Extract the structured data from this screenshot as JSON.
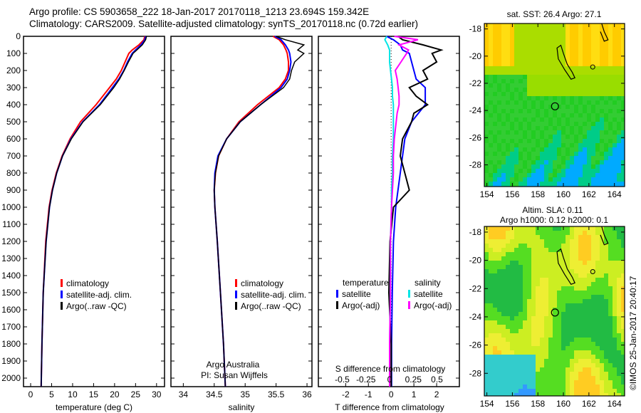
{
  "header": {
    "title_line1": "Argo profile: CS 5903658_222 18-Jan-2017 20170118_1213 23.694S 159.342E",
    "title_line2": "Climatology: CARS2009. Satellite-adjusted climatology: synTS_20170118.nc (0.72d earlier)"
  },
  "credit": "©IMOS 25-Jan-2017 20:40:17",
  "colors": {
    "climatology": "#ff0000",
    "satellite": "#0000ff",
    "argo": "#000000",
    "sal_satellite": "#00e5e5",
    "sal_argo": "#ff00ff"
  },
  "chart_data": [
    {
      "type": "line",
      "name": "temperature",
      "xlabel": "temperature (deg C)",
      "ylabel": "depth",
      "xlim": [
        -1.7,
        31.9
      ],
      "ylim": [
        2080,
        0
      ],
      "xticks": [
        "0",
        "5",
        "10",
        "15",
        "20",
        "25",
        "30"
      ],
      "xtick_vals": [
        0,
        5,
        10,
        15,
        20,
        25,
        30
      ],
      "yticks": [
        "0",
        "100",
        "200",
        "300",
        "400",
        "500",
        "600",
        "700",
        "800",
        "900",
        "1000",
        "1100",
        "1200",
        "1300",
        "1400",
        "1500",
        "1600",
        "1700",
        "1800",
        "1900",
        "2000"
      ],
      "depth": [
        0,
        20,
        50,
        80,
        100,
        150,
        200,
        250,
        300,
        400,
        500,
        600,
        700,
        800,
        900,
        1000,
        1200,
        1500,
        1800,
        2050
      ],
      "series": [
        {
          "name": "climatology",
          "color": "#ff0000",
          "values": [
            27.2,
            27,
            25.8,
            24.2,
            23.4,
            22.5,
            21.6,
            20.4,
            18.8,
            15.6,
            11.9,
            9.4,
            7.5,
            6.1,
            5.1,
            4.4,
            3.6,
            3.0,
            2.7,
            2.5
          ]
        },
        {
          "name": "satellite-adj. clim.",
          "color": "#0000ff",
          "values": [
            27.4,
            27.2,
            26.3,
            25,
            24.2,
            23.1,
            22.2,
            21,
            19.5,
            16.4,
            12.4,
            9.6,
            7.6,
            6.2,
            5.2,
            4.5,
            3.7,
            3.0,
            2.7,
            2.5
          ]
        },
        {
          "name": "Argo(..raw -QC)",
          "color": "#000000",
          "values": [
            27.6,
            27.4,
            26.6,
            25.3,
            24.4,
            23.3,
            22.3,
            21.2,
            19.8,
            16.6,
            12.5,
            9.7,
            7.6,
            6.2,
            5.2,
            4.5,
            3.7,
            3.0,
            2.7,
            2.5
          ]
        }
      ],
      "legend": [
        "climatology",
        "satellite-adj. clim.",
        "Argo(..raw -QC)"
      ]
    },
    {
      "type": "line",
      "name": "salinity",
      "xlabel": "salinity",
      "xlim": [
        33.8,
        36.08
      ],
      "ylim": [
        2080,
        0
      ],
      "xticks": [
        "34",
        "34.5",
        "35",
        "35.5",
        "36"
      ],
      "xtick_vals": [
        34,
        34.5,
        35,
        35.5,
        36
      ],
      "depth": [
        0,
        20,
        50,
        80,
        100,
        150,
        200,
        250,
        300,
        400,
        500,
        600,
        700,
        800,
        900,
        1000,
        1200,
        1500,
        1800,
        2050
      ],
      "series": [
        {
          "name": "climatology",
          "color": "#ff0000",
          "values": [
            35.45,
            35.55,
            35.62,
            35.66,
            35.68,
            35.7,
            35.7,
            35.65,
            35.55,
            35.2,
            34.9,
            34.7,
            34.57,
            34.52,
            34.5,
            34.51,
            34.55,
            34.6,
            34.65,
            34.68
          ]
        },
        {
          "name": "satellite-adj. clim.",
          "color": "#0000ff",
          "values": [
            35.48,
            35.58,
            35.65,
            35.7,
            35.72,
            35.74,
            35.72,
            35.68,
            35.58,
            35.25,
            34.92,
            34.7,
            34.56,
            34.51,
            34.5,
            34.51,
            34.55,
            34.6,
            34.65,
            34.68
          ]
        },
        {
          "name": "Argo(..raw -QC)",
          "color": "#000000",
          "values": [
            35.5,
            35.65,
            35.95,
            35.85,
            35.95,
            35.8,
            35.75,
            35.72,
            35.62,
            35.25,
            34.92,
            34.7,
            34.57,
            34.52,
            34.5,
            34.51,
            34.55,
            34.6,
            34.65,
            34.68
          ]
        }
      ],
      "legend": [
        "climatology",
        "satellite-adj. clim.",
        "Argo(..raw -QC)"
      ],
      "annotation": [
        "Argo Australia",
        "PI: Susan Wijffels"
      ]
    },
    {
      "type": "line",
      "name": "differences",
      "xlabel": "T difference from climatology",
      "x2label": "S difference from climatology",
      "xlim": [
        -3.2,
        3.0
      ],
      "s_xlim": [
        -0.75,
        0.75
      ],
      "xticks": [
        "-2",
        "-1",
        "0",
        "1",
        "2"
      ],
      "xtick_vals": [
        -2,
        -1,
        0,
        1,
        2
      ],
      "s_xticks": [
        "-0.5",
        "-0.25",
        "0",
        "0.25",
        "0.5"
      ],
      "s_xtick_vals": [
        -0.5,
        -0.25,
        0,
        0.25,
        0.5
      ],
      "depth": [
        0,
        20,
        50,
        80,
        100,
        150,
        200,
        250,
        300,
        350,
        400,
        450,
        500,
        600,
        700,
        800,
        900,
        1000,
        1200,
        1500,
        1800,
        2050
      ],
      "series": [
        {
          "name": "T satellite",
          "color": "#0000ff",
          "axis": "T",
          "values": [
            -0.2,
            0.1,
            0.4,
            0.5,
            0.8,
            0.9,
            1.0,
            1.1,
            1.5,
            1.5,
            1.5,
            1.2,
            0.9,
            0.6,
            0.5,
            0.4,
            0.3,
            0.2,
            0.1,
            0.05,
            0.02,
            0.02
          ]
        },
        {
          "name": "T Argo(-adj)",
          "color": "#000000",
          "axis": "T",
          "values": [
            0.3,
            0.5,
            1.4,
            2.2,
            1.8,
            2.0,
            1.4,
            1.6,
            0.8,
            1.1,
            1.6,
            1.0,
            0.9,
            0.5,
            0.4,
            0.6,
            0.8,
            0.1,
            -0.05,
            -0.1,
            0,
            0
          ]
        },
        {
          "name": "S satellite",
          "color": "#00e5e5",
          "axis": "S",
          "values": [
            -0.03,
            -0.05,
            -0.02,
            0.0,
            0.0,
            0.0,
            0.01,
            0.02,
            0.03,
            0.03,
            0.04,
            0.04,
            0.04,
            0.04,
            0.03,
            0.03,
            0.02,
            0.02,
            0.01,
            0.01,
            0.0,
            0.0
          ]
        },
        {
          "name": "S Argo(-adj)",
          "color": "#ff00ff",
          "axis": "S",
          "values": [
            0.05,
            0.3,
            0.1,
            0.2,
            0.18,
            0.12,
            0.06,
            0.08,
            0.09,
            0.1,
            0.1,
            0.08,
            0.07,
            0.05,
            0.04,
            0.04,
            0.03,
            0.02,
            0.01,
            0.01,
            0.0,
            0.0
          ]
        }
      ],
      "legend_temperature": {
        "title": "temperature",
        "items": [
          "satellite",
          "Argo(-adj)"
        ]
      },
      "legend_salinity": {
        "title": "salinity",
        "items": [
          "satellite",
          "Argo(-adj)"
        ]
      }
    },
    {
      "type": "heatmap",
      "name": "sst-map",
      "title": "sat. SST: 26.4  Argo: 27.1",
      "xlim": [
        153.8,
        164.8
      ],
      "ylim": [
        -29.6,
        -17.6
      ],
      "xticks": [
        "154",
        "156",
        "158",
        "160",
        "162",
        "164"
      ],
      "xtick_vals": [
        154,
        156,
        158,
        160,
        162,
        164
      ],
      "yticks": [
        "-18",
        "-20",
        "-22",
        "-24",
        "-26",
        "-28"
      ],
      "ytick_vals": [
        -18,
        -20,
        -22,
        -24,
        -26,
        -28
      ],
      "argo_position": [
        159.342,
        -23.694
      ]
    },
    {
      "type": "heatmap",
      "name": "sla-map",
      "title": "Altim. SLA: 0.11",
      "subtitle": "Argo h1000: 0.12 h2000: 0.1",
      "xlim": [
        153.8,
        164.8
      ],
      "ylim": [
        -29.6,
        -17.6
      ],
      "xticks": [
        "154",
        "156",
        "158",
        "160",
        "162",
        "164"
      ],
      "xtick_vals": [
        154,
        156,
        158,
        160,
        162,
        164
      ],
      "yticks": [
        "-18",
        "-20",
        "-22",
        "-24",
        "-26",
        "-28"
      ],
      "ytick_vals": [
        -18,
        -20,
        -22,
        -24,
        -26,
        -28
      ],
      "argo_position": [
        159.342,
        -23.694
      ]
    }
  ]
}
